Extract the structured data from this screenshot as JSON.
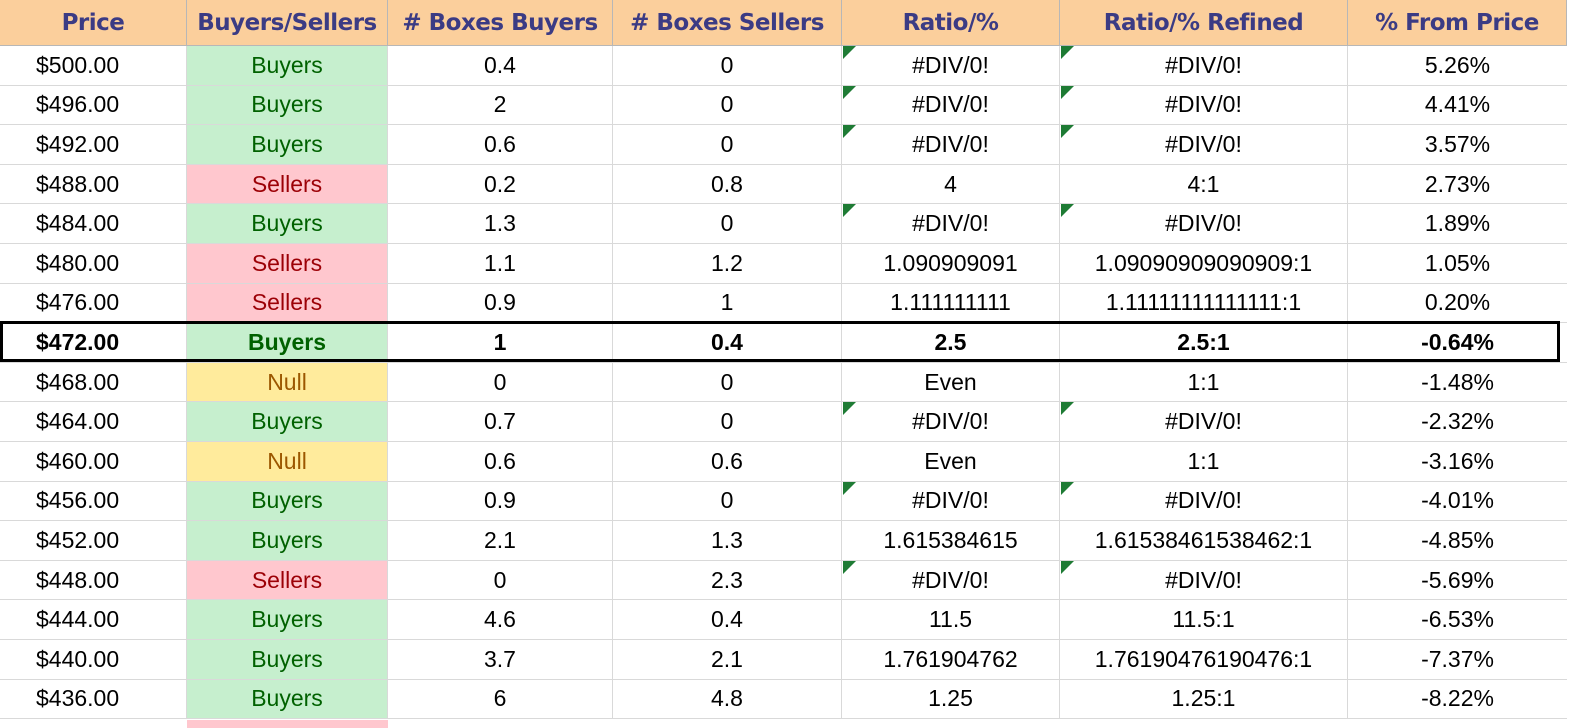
{
  "headers": [
    "Price",
    "Buyers/Sellers",
    "# Boxes Buyers",
    "# Boxes Sellers",
    "Ratio/%",
    "Ratio/% Refined",
    "% From Price"
  ],
  "rows": [
    {
      "price": "$500.00",
      "side": "Buyers",
      "boxes_buyers": "0.4",
      "boxes_sellers": "0",
      "ratio": "#DIV/0!",
      "ratio_refined": "#DIV/0!",
      "pct": "5.26%",
      "error": true
    },
    {
      "price": "$496.00",
      "side": "Buyers",
      "boxes_buyers": "2",
      "boxes_sellers": "0",
      "ratio": "#DIV/0!",
      "ratio_refined": "#DIV/0!",
      "pct": "4.41%",
      "error": true
    },
    {
      "price": "$492.00",
      "side": "Buyers",
      "boxes_buyers": "0.6",
      "boxes_sellers": "0",
      "ratio": "#DIV/0!",
      "ratio_refined": "#DIV/0!",
      "pct": "3.57%",
      "error": true
    },
    {
      "price": "$488.00",
      "side": "Sellers",
      "boxes_buyers": "0.2",
      "boxes_sellers": "0.8",
      "ratio": "4",
      "ratio_refined": "4:1",
      "pct": "2.73%",
      "error": false
    },
    {
      "price": "$484.00",
      "side": "Buyers",
      "boxes_buyers": "1.3",
      "boxes_sellers": "0",
      "ratio": "#DIV/0!",
      "ratio_refined": "#DIV/0!",
      "pct": "1.89%",
      "error": true
    },
    {
      "price": "$480.00",
      "side": "Sellers",
      "boxes_buyers": "1.1",
      "boxes_sellers": "1.2",
      "ratio": "1.090909091",
      "ratio_refined": "1.09090909090909:1",
      "pct": "1.05%",
      "error": false
    },
    {
      "price": "$476.00",
      "side": "Sellers",
      "boxes_buyers": "0.9",
      "boxes_sellers": "1",
      "ratio": "1.111111111",
      "ratio_refined": "1.11111111111111:1",
      "pct": "0.20%",
      "error": false
    },
    {
      "price": "$472.00",
      "side": "Buyers",
      "boxes_buyers": "1",
      "boxes_sellers": "0.4",
      "ratio": "2.5",
      "ratio_refined": "2.5:1",
      "pct": "-0.64%",
      "error": false,
      "current": true
    },
    {
      "price": "$468.00",
      "side": "Null",
      "boxes_buyers": "0",
      "boxes_sellers": "0",
      "ratio": "Even",
      "ratio_refined": "1:1",
      "pct": "-1.48%",
      "error": false
    },
    {
      "price": "$464.00",
      "side": "Buyers",
      "boxes_buyers": "0.7",
      "boxes_sellers": "0",
      "ratio": "#DIV/0!",
      "ratio_refined": "#DIV/0!",
      "pct": "-2.32%",
      "error": true
    },
    {
      "price": "$460.00",
      "side": "Null",
      "boxes_buyers": "0.6",
      "boxes_sellers": "0.6",
      "ratio": "Even",
      "ratio_refined": "1:1",
      "pct": "-3.16%",
      "error": false
    },
    {
      "price": "$456.00",
      "side": "Buyers",
      "boxes_buyers": "0.9",
      "boxes_sellers": "0",
      "ratio": "#DIV/0!",
      "ratio_refined": "#DIV/0!",
      "pct": "-4.01%",
      "error": true
    },
    {
      "price": "$452.00",
      "side": "Buyers",
      "boxes_buyers": "2.1",
      "boxes_sellers": "1.3",
      "ratio": "1.615384615",
      "ratio_refined": "1.61538461538462:1",
      "pct": "-4.85%",
      "error": false
    },
    {
      "price": "$448.00",
      "side": "Sellers",
      "boxes_buyers": "0",
      "boxes_sellers": "2.3",
      "ratio": "#DIV/0!",
      "ratio_refined": "#DIV/0!",
      "pct": "-5.69%",
      "error": true
    },
    {
      "price": "$444.00",
      "side": "Buyers",
      "boxes_buyers": "4.6",
      "boxes_sellers": "0.4",
      "ratio": "11.5",
      "ratio_refined": "11.5:1",
      "pct": "-6.53%",
      "error": false
    },
    {
      "price": "$440.00",
      "side": "Buyers",
      "boxes_buyers": "3.7",
      "boxes_sellers": "2.1",
      "ratio": "1.761904762",
      "ratio_refined": "1.76190476190476:1",
      "pct": "-7.37%",
      "error": false
    },
    {
      "price": "$436.00",
      "side": "Buyers",
      "boxes_buyers": "6",
      "boxes_sellers": "4.8",
      "ratio": "1.25",
      "ratio_refined": "1.25:1",
      "pct": "-8.22%",
      "error": false
    }
  ],
  "colors": {
    "header_bg": "#fbcf9c",
    "header_text": "#3b3b84",
    "buyers_bg": "#c6efce",
    "buyers_text": "#006100",
    "sellers_bg": "#ffc7ce",
    "sellers_text": "#9c0006",
    "null_bg": "#ffeb9c",
    "null_text": "#9c5700",
    "error_flag": "#1e7b34"
  }
}
